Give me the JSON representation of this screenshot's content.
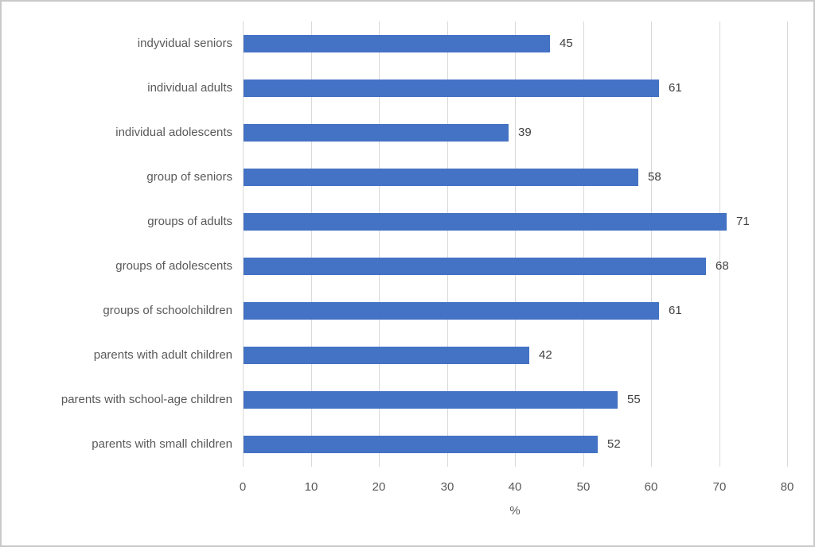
{
  "chart_data": {
    "type": "bar",
    "orientation": "horizontal",
    "categories": [
      "indyvidual seniors",
      "individual adults",
      "individual adolescents",
      "group of seniors",
      "groups of adults",
      "groups of adolescents",
      "groups of schoolchildren",
      "parents with adult children",
      "parents with school-age children",
      "parents with small children"
    ],
    "values": [
      45,
      61,
      39,
      58,
      71,
      68,
      61,
      42,
      55,
      52
    ],
    "data_labels": [
      "45",
      "61",
      "39",
      "58",
      "71",
      "68",
      "61",
      "42",
      "55",
      "52"
    ],
    "title": "",
    "xlabel": "%",
    "ylabel": "",
    "xlim": [
      0,
      80
    ],
    "xticks": [
      "0",
      "10",
      "20",
      "30",
      "40",
      "50",
      "60",
      "70",
      "80"
    ],
    "grid": "vertical-only",
    "legend": "none",
    "bar_color": "#4472C4",
    "gridline_color": "#d9d9d9",
    "axis_text_color": "#595959",
    "data_label_color": "#404040"
  }
}
